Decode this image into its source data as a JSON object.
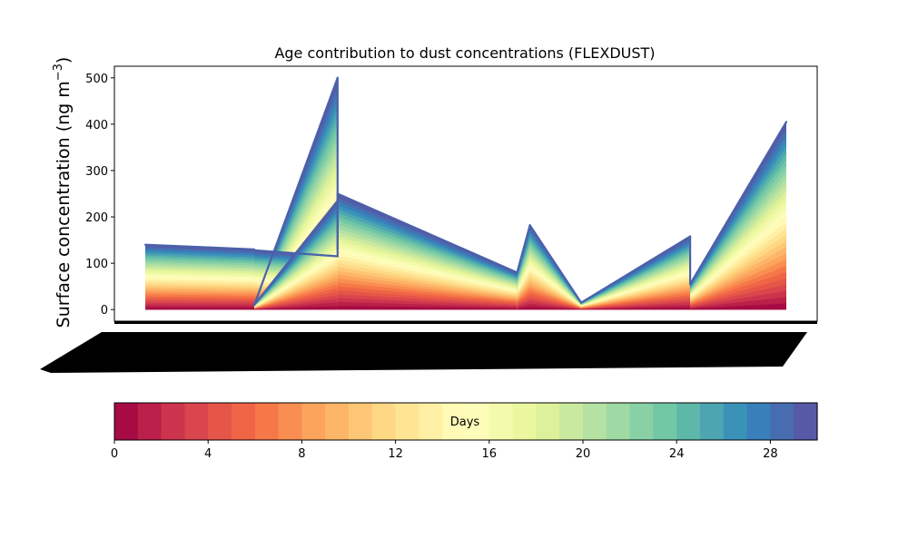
{
  "chart_data": {
    "type": "area",
    "title": "Age contribution to dust concentrations (FLEXDUST)",
    "ylabel_main": "Surface concentration (ng m",
    "ylabel_sup": "−3",
    "ylabel_close": ")",
    "xlabel": "",
    "ylim": [
      -25,
      525
    ],
    "yticks": [
      0,
      100,
      200,
      300,
      400,
      500
    ],
    "x_tick_labels_legible": false,
    "grid": false,
    "outline_color": "#4a62aa",
    "series_totals": [
      {
        "x": [
          0.0,
          0.17
        ],
        "y": [
          140,
          130
        ]
      },
      {
        "x": [
          0.17,
          0.3
        ],
        "y": [
          10,
          500
        ]
      },
      {
        "x": [
          0.3,
          0.3
        ],
        "y": [
          500,
          130
        ]
      },
      {
        "x": [
          0.17,
          0.3
        ],
        "y": [
          128,
          115
        ]
      },
      {
        "x": [
          0.17,
          0.3
        ],
        "y": [
          10,
          235
        ]
      },
      {
        "x": [
          0.3,
          0.3
        ],
        "y": [
          115,
          250
        ]
      },
      {
        "x": [
          0.3,
          0.58
        ],
        "y": [
          250,
          80
        ]
      },
      {
        "x": [
          0.58,
          0.6
        ],
        "y": [
          80,
          182
        ]
      },
      {
        "x": [
          0.6,
          0.68
        ],
        "y": [
          182,
          15
        ]
      },
      {
        "x": [
          0.68,
          0.85
        ],
        "y": [
          15,
          158
        ]
      },
      {
        "x": [
          0.85,
          0.85
        ],
        "y": [
          158,
          55
        ]
      },
      {
        "x": [
          0.85,
          1.0
        ],
        "y": [
          55,
          405
        ]
      }
    ],
    "colorbar": {
      "label": "Days",
      "range": [
        0,
        30
      ],
      "ticks": [
        0,
        4,
        8,
        12,
        16,
        20,
        24,
        28
      ],
      "tick_labels": [
        "0",
        "4",
        "8",
        "12",
        "16",
        "20",
        "24",
        "28"
      ],
      "colormap": "Spectral",
      "n_levels": 30
    },
    "colormap_stops": [
      "#9e0142",
      "#d53e4f",
      "#f46d43",
      "#fdae61",
      "#fee08b",
      "#ffffbf",
      "#e6f598",
      "#abdda4",
      "#66c2a5",
      "#3288bd",
      "#5e4fa2"
    ]
  }
}
